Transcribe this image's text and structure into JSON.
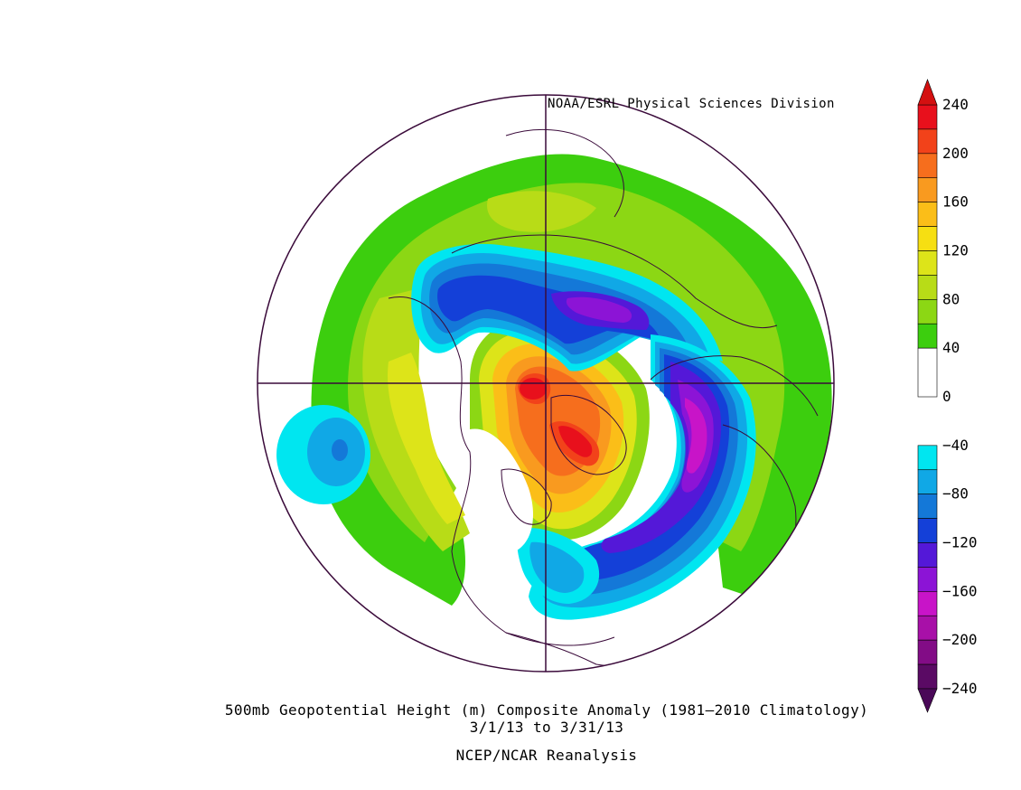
{
  "credit": "NOAA/ESRL Physical Sciences Division",
  "title": {
    "line1": "500mb Geopotential Height (m) Composite Anomaly (1981–2010 Climatology)",
    "line2": "3/1/13   to 3/31/13",
    "line3": "NCEP/NCAR Reanalysis"
  },
  "colorbar": {
    "ticks": [
      "240",
      "200",
      "160",
      "120",
      "80",
      "40",
      "0",
      "−40",
      "−80",
      "−120",
      "−160",
      "−200",
      "−240"
    ],
    "bins": [
      {
        "low": 220,
        "high": 240,
        "color": "#e8101c"
      },
      {
        "low": 200,
        "high": 220,
        "color": "#f2421a"
      },
      {
        "low": 180,
        "high": 200,
        "color": "#f66e1d"
      },
      {
        "low": 160,
        "high": 180,
        "color": "#f99a1f"
      },
      {
        "low": 140,
        "high": 160,
        "color": "#fbbe18"
      },
      {
        "low": 120,
        "high": 140,
        "color": "#f6df12"
      },
      {
        "low": 100,
        "high": 120,
        "color": "#dde419"
      },
      {
        "low": 80,
        "high": 100,
        "color": "#b8dc17"
      },
      {
        "low": 60,
        "high": 80,
        "color": "#8cd714"
      },
      {
        "low": 40,
        "high": 60,
        "color": "#3cce0e"
      },
      {
        "low": 0,
        "high": 40,
        "color": "#ffffff"
      },
      {
        "low": -60,
        "high": -40,
        "color": "#00e6f0"
      },
      {
        "low": -80,
        "high": -60,
        "color": "#10a8e6"
      },
      {
        "low": -100,
        "high": -80,
        "color": "#1478d8"
      },
      {
        "low": -120,
        "high": -100,
        "color": "#1440d8"
      },
      {
        "low": -140,
        "high": -120,
        "color": "#5418d8"
      },
      {
        "low": -160,
        "high": -140,
        "color": "#8c14d6"
      },
      {
        "low": -180,
        "high": -160,
        "color": "#c814c8"
      },
      {
        "low": -200,
        "high": -180,
        "color": "#a810a8"
      },
      {
        "low": -220,
        "high": -200,
        "color": "#820c86"
      },
      {
        "low": -240,
        "high": -220,
        "color": "#5a0a64"
      }
    ],
    "over_color": "#d41010",
    "under_color": "#4a0858"
  },
  "anomaly_centers": [
    {
      "id": "c1",
      "value": 240
    },
    {
      "id": "c2",
      "value": 240
    },
    {
      "id": "c3",
      "value": -160
    },
    {
      "id": "c4",
      "value": -180
    },
    {
      "id": "c5",
      "value": -100
    },
    {
      "id": "c6",
      "value": -80
    },
    {
      "id": "c7",
      "value": 160
    },
    {
      "id": "c8",
      "value": 80
    }
  ]
}
